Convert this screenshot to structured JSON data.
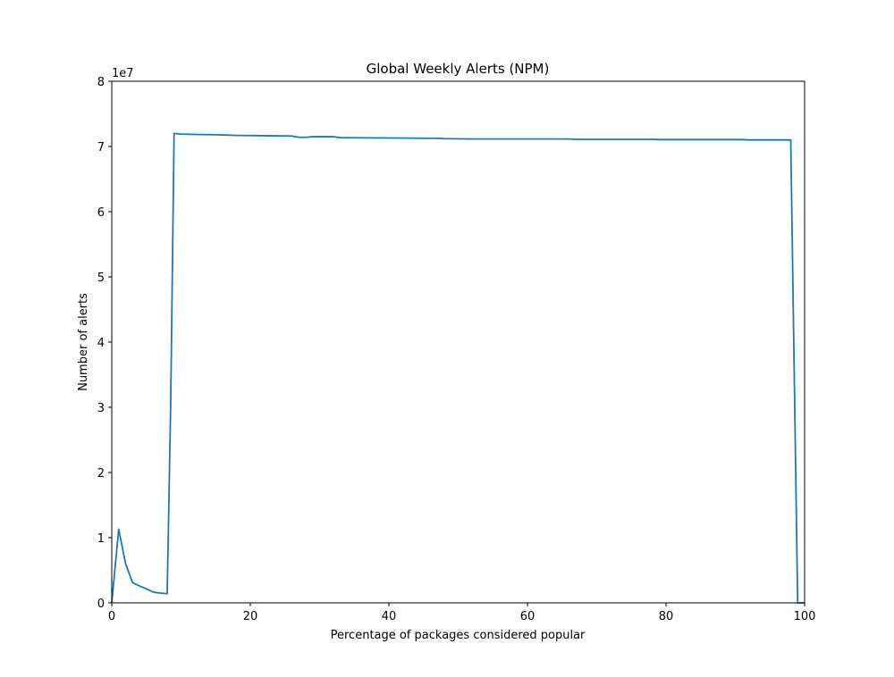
{
  "chart_data": {
    "type": "line",
    "title": "Global Weekly Alerts (NPM)",
    "xlabel": "Percentage of packages considered popular",
    "ylabel": "Number of alerts",
    "y_offset_label": "1e7",
    "xlim": [
      0,
      100
    ],
    "ylim": [
      0,
      80000000
    ],
    "x_ticks": [
      0,
      20,
      40,
      60,
      80,
      100
    ],
    "x_tick_labels": [
      "0",
      "20",
      "40",
      "60",
      "80",
      "100"
    ],
    "y_ticks": [
      0,
      10000000,
      20000000,
      30000000,
      40000000,
      50000000,
      60000000,
      70000000,
      80000000
    ],
    "y_tick_labels": [
      "0",
      "1",
      "2",
      "3",
      "4",
      "5",
      "6",
      "7",
      "8"
    ],
    "grid": false,
    "line_color": "#1f77b4",
    "series": [
      {
        "x": [
          0,
          1,
          2,
          3,
          4,
          5,
          6,
          7,
          8,
          8.5,
          9,
          10,
          12,
          15,
          18,
          22,
          26,
          27,
          28,
          29,
          32,
          33,
          40,
          47,
          48,
          52,
          60,
          66,
          67,
          78,
          79,
          91,
          92,
          98,
          99,
          100
        ],
        "values": [
          0,
          11300000,
          6000000,
          3100000,
          2600000,
          2150000,
          1650000,
          1500000,
          1400000,
          30000000,
          72000000,
          71900000,
          71850000,
          71800000,
          71700000,
          71650000,
          71600000,
          71400000,
          71400000,
          71500000,
          71500000,
          71350000,
          71300000,
          71250000,
          71200000,
          71150000,
          71150000,
          71150000,
          71100000,
          71100000,
          71050000,
          71050000,
          71000000,
          71000000,
          0,
          0
        ]
      }
    ]
  }
}
